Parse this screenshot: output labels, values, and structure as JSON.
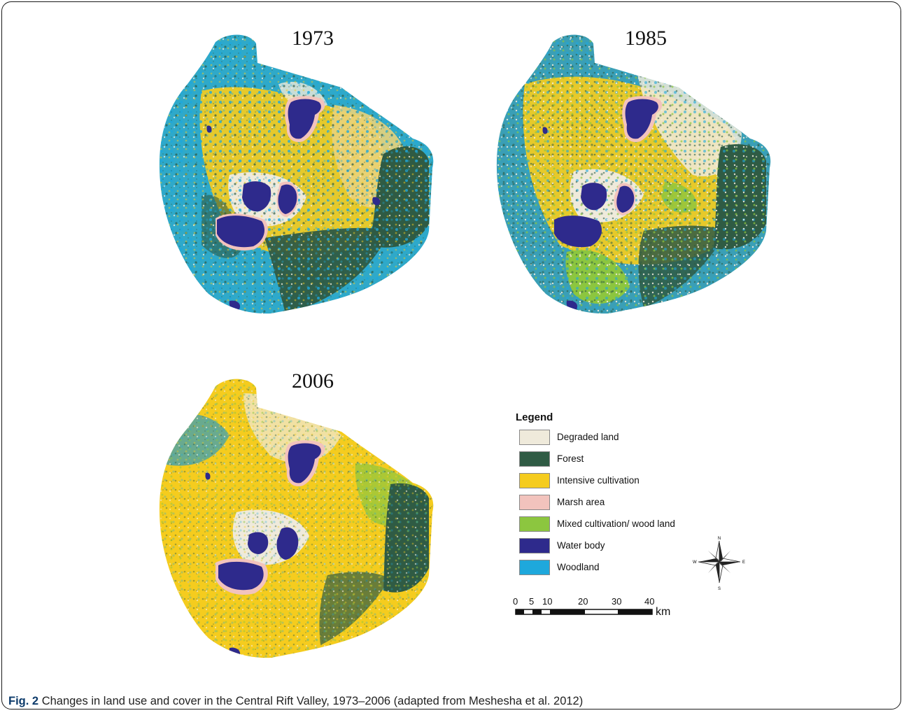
{
  "figure": {
    "label": "Fig. 2",
    "caption": "Changes in land use and cover in the Central Rift Valley, 1973–2006 (adapted from Meshesha et al. 2012)"
  },
  "panels": [
    {
      "year": "1973"
    },
    {
      "year": "1985"
    },
    {
      "year": "2006"
    }
  ],
  "legend": {
    "title": "Legend",
    "items": [
      {
        "label": "Degraded land",
        "color": "#efeadb"
      },
      {
        "label": "Forest",
        "color": "#2f5b44"
      },
      {
        "label": "Intensive cultivation",
        "color": "#f5cc1e"
      },
      {
        "label": "Marsh area",
        "color": "#f2c3bd"
      },
      {
        "label": "Mixed cultivation/ wood land",
        "color": "#8cc63f"
      },
      {
        "label": "Water body",
        "color": "#2e2a8c"
      },
      {
        "label": "Woodland",
        "color": "#1ea8dc"
      }
    ]
  },
  "scale": {
    "ticks": [
      "0",
      "5",
      "10",
      "20",
      "30",
      "40"
    ],
    "unit": "km"
  },
  "compass": {
    "icon": "north-arrow-compass-rose-icon",
    "labels": [
      "N",
      "E",
      "S",
      "W"
    ]
  }
}
